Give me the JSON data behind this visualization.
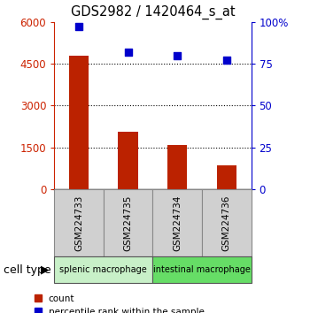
{
  "title": "GDS2982 / 1420464_s_at",
  "samples": [
    "GSM224733",
    "GSM224735",
    "GSM224734",
    "GSM224736"
  ],
  "counts": [
    4800,
    2050,
    1580,
    850
  ],
  "percentile_ranks": [
    97,
    82,
    80,
    77
  ],
  "ylim_left": [
    0,
    6000
  ],
  "ylim_right": [
    0,
    100
  ],
  "yticks_left": [
    0,
    1500,
    3000,
    4500,
    6000
  ],
  "yticks_right": [
    0,
    25,
    50,
    75,
    100
  ],
  "yticklabels_left": [
    "0",
    "1500",
    "3000",
    "4500",
    "6000"
  ],
  "yticklabels_right": [
    "0",
    "25",
    "50",
    "75",
    "100%"
  ],
  "bar_color": "#bb2200",
  "dot_color": "#0000cc",
  "group1_label": "splenic macrophage",
  "group2_label": "intestinal macrophage",
  "group1_color": "#c8f0c8",
  "group2_color": "#66dd66",
  "cell_type_label": "cell type",
  "legend_count_label": "count",
  "legend_percentile_label": "percentile rank within the sample",
  "bar_width": 0.4,
  "left_axis_color": "#cc2200",
  "right_axis_color": "#0000cc",
  "grid_color": "#000000",
  "label_box_color": "#d0d0d0",
  "label_box_edge": "#888888"
}
